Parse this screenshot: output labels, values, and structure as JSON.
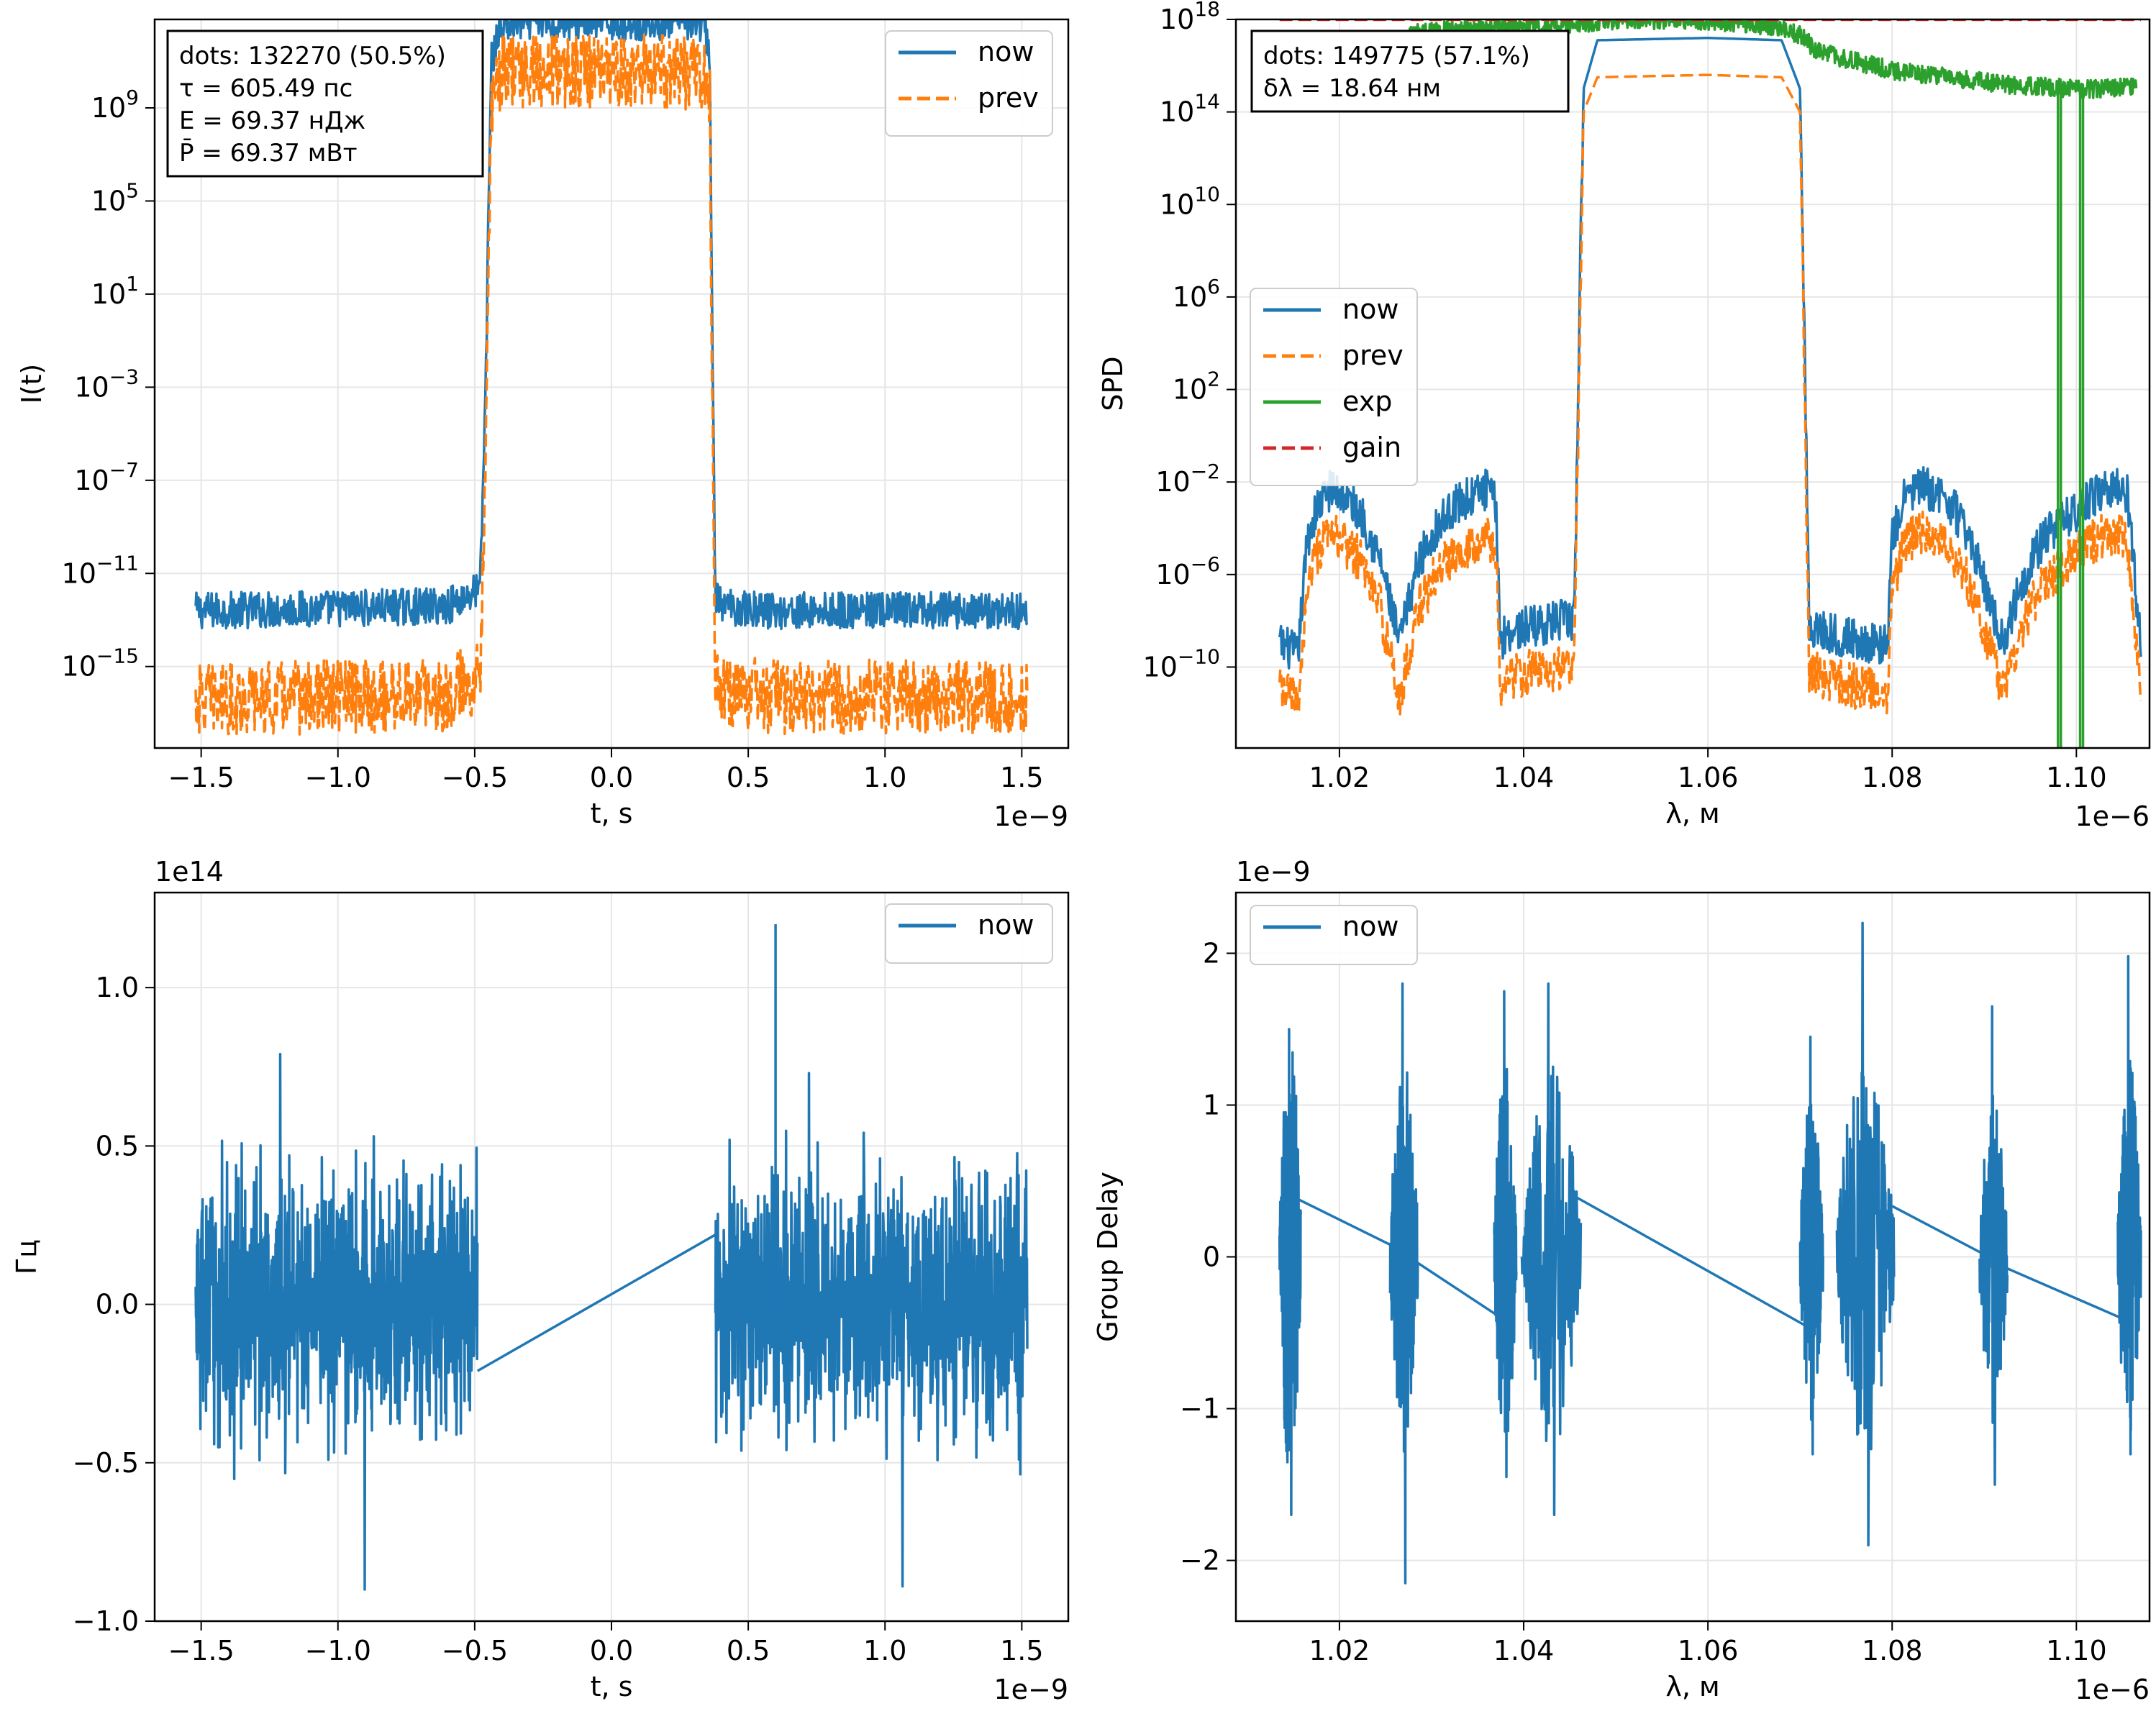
{
  "figure": {
    "colors": {
      "now": "#1f77b4",
      "prev": "#ff7f0e",
      "exp": "#2ca02c",
      "gain": "#d62728",
      "grid": "#e6e6e6"
    }
  },
  "chart_data": [
    {
      "id": "intensity",
      "type": "line",
      "xlabel": "t, s",
      "ylabel": "I(t)",
      "x_offset_text": "1e−9",
      "xlim": [
        -1.67,
        1.67
      ],
      "xticks": [
        -1.5,
        -1.0,
        -0.5,
        0.0,
        0.5,
        1.0,
        1.5
      ],
      "xtick_labels": [
        "−1.5",
        "−1.0",
        "−0.5",
        "0.0",
        "0.5",
        "1.0",
        "1.5"
      ],
      "yscale": "log",
      "ylim_exp": [
        -18.5,
        12.8
      ],
      "yticks_exp": [
        9,
        5,
        1,
        -3,
        -7,
        -11,
        -15
      ],
      "grid": true,
      "legend": {
        "position": "top-right",
        "entries": [
          {
            "series": "now",
            "label": "now"
          },
          {
            "series": "prev",
            "label": "prev"
          }
        ]
      },
      "info_box": [
        "dots: 132270 (50.5%)",
        "τ = 605.49 пс",
        "E = 69.37 нДж",
        "P̄ = 69.37 мВт"
      ],
      "series": [
        {
          "name": "now",
          "style": "solid",
          "x": [
            -1.52,
            -1.0,
            -0.6,
            -0.5,
            -0.48,
            -0.46,
            -0.44,
            -0.4,
            -0.3,
            0.0,
            0.3,
            0.34,
            0.36,
            0.37,
            0.38,
            0.4,
            0.6,
            1.0,
            1.52
          ],
          "y_exp": [
            -12.6,
            -12.5,
            -12.4,
            -11.8,
            -11.7,
            -3.0,
            11.0,
            12.6,
            12.7,
            12.7,
            12.7,
            12.6,
            11.0,
            -3.0,
            -11.8,
            -12.4,
            -12.6,
            -12.6,
            -12.6
          ],
          "noise_amp": 0.8
        },
        {
          "name": "prev",
          "style": "dashed",
          "x": [
            -1.52,
            -1.0,
            -0.6,
            -0.5,
            -0.48,
            -0.46,
            -0.44,
            -0.4,
            -0.3,
            0.0,
            0.3,
            0.34,
            0.36,
            0.37,
            0.38,
            0.4,
            0.6,
            1.0,
            1.52
          ],
          "y_exp": [
            -16.4,
            -16.3,
            -16.2,
            -15.5,
            -15.4,
            -5.0,
            9.0,
            10.5,
            10.6,
            10.6,
            10.5,
            10.4,
            9.0,
            -5.0,
            -15.5,
            -16.1,
            -16.3,
            -16.3,
            -16.3
          ],
          "noise_amp": 1.6
        }
      ]
    },
    {
      "id": "spectrum",
      "type": "line",
      "xlabel": "λ, м",
      "ylabel": "SPD",
      "x_offset_text": "1e−6",
      "xlim": [
        1.00876,
        1.10794
      ],
      "xticks": [
        1.02,
        1.04,
        1.06,
        1.08,
        1.1
      ],
      "xtick_labels": [
        "1.02",
        "1.04",
        "1.06",
        "1.08",
        "1.10"
      ],
      "yscale": "log",
      "ylim_exp": [
        -13.5,
        18.0
      ],
      "yticks_exp": [
        18,
        14,
        10,
        6,
        2,
        -2,
        -6,
        -10
      ],
      "grid": true,
      "legend": {
        "position": "center-left",
        "entries": [
          {
            "series": "now",
            "label": "now"
          },
          {
            "series": "prev",
            "label": "prev"
          },
          {
            "series": "exp",
            "label": "exp"
          },
          {
            "series": "gain",
            "label": "gain"
          }
        ]
      },
      "info_box": [
        "dots: 149775 (57.1%)",
        "δλ = 18.64 нм"
      ],
      "series": [
        {
          "name": "now",
          "style": "solid",
          "x": [
            1.0135,
            1.0145,
            1.0155,
            1.0165,
            1.0175,
            1.019,
            1.0205,
            1.0225,
            1.0245,
            1.0265,
            1.0285,
            1.0305,
            1.0325,
            1.0345,
            1.036,
            1.037,
            1.0375,
            1.038,
            1.04,
            1.044,
            1.0455,
            1.046,
            1.0465,
            1.048,
            1.06,
            1.068,
            1.07,
            1.0705,
            1.071,
            1.0715,
            1.074,
            1.078,
            1.0795,
            1.08,
            1.0815,
            1.083,
            1.0845,
            1.0865,
            1.0885,
            1.0905,
            1.092,
            1.0935,
            1.0955,
            1.0975,
            1.0995,
            1.1015,
            1.1035,
            1.1055,
            1.107
          ],
          "y_exp": [
            -9.0,
            -9.2,
            -9.5,
            -4.5,
            -3.2,
            -2.3,
            -2.6,
            -3.5,
            -5.5,
            -9.0,
            -5.5,
            -4.0,
            -3.0,
            -2.6,
            -2.3,
            -3.0,
            -9.0,
            -8.5,
            -8.3,
            -8.0,
            -8.0,
            4.0,
            15.0,
            17.1,
            17.2,
            17.1,
            15.0,
            4.0,
            -8.2,
            -8.3,
            -8.6,
            -9.0,
            -9.0,
            -4.5,
            -2.5,
            -2.2,
            -2.4,
            -3.0,
            -4.5,
            -7.0,
            -9.0,
            -7.0,
            -5.0,
            -4.0,
            -3.4,
            -2.7,
            -2.2,
            -2.4,
            -9.0
          ],
          "noise_amp": 0.9
        },
        {
          "name": "prev",
          "style": "dashed",
          "x": [
            1.0135,
            1.0145,
            1.0155,
            1.0165,
            1.0175,
            1.019,
            1.0205,
            1.0225,
            1.0245,
            1.0265,
            1.0285,
            1.0305,
            1.0325,
            1.0345,
            1.036,
            1.037,
            1.0375,
            1.038,
            1.04,
            1.044,
            1.0455,
            1.046,
            1.0465,
            1.048,
            1.06,
            1.068,
            1.07,
            1.0705,
            1.071,
            1.0715,
            1.074,
            1.078,
            1.0795,
            1.08,
            1.0815,
            1.083,
            1.0845,
            1.0865,
            1.0885,
            1.0905,
            1.092,
            1.0935,
            1.0955,
            1.0975,
            1.0995,
            1.1015,
            1.1035,
            1.1055,
            1.107
          ],
          "y_exp": [
            -11.0,
            -11.2,
            -11.5,
            -6.5,
            -5.2,
            -4.3,
            -4.6,
            -5.5,
            -7.5,
            -11.5,
            -7.5,
            -6.0,
            -5.0,
            -4.6,
            -4.3,
            -5.0,
            -11.0,
            -10.5,
            -10.3,
            -10.0,
            -10.0,
            2.0,
            14.0,
            15.5,
            15.6,
            15.5,
            14.0,
            2.0,
            -10.2,
            -10.3,
            -10.6,
            -11.0,
            -11.0,
            -6.5,
            -4.5,
            -4.2,
            -4.4,
            -5.0,
            -6.5,
            -9.0,
            -11.0,
            -9.0,
            -7.0,
            -6.0,
            -5.4,
            -4.7,
            -4.2,
            -4.4,
            -11.0
          ],
          "noise_amp": 1.0
        },
        {
          "name": "exp",
          "style": "solid",
          "x": [
            1.0275,
            1.03,
            1.035,
            1.04,
            1.045,
            1.048,
            1.052,
            1.056,
            1.06,
            1.064,
            1.068,
            1.07,
            1.072,
            1.076,
            1.08,
            1.084,
            1.088,
            1.092,
            1.096,
            1.1,
            1.104,
            1.1065
          ],
          "y_exp": [
            17.4,
            17.5,
            17.6,
            17.7,
            17.75,
            17.9,
            18.0,
            17.95,
            17.9,
            17.8,
            17.7,
            17.3,
            16.6,
            16.2,
            15.8,
            15.6,
            15.4,
            15.2,
            15.1,
            15.0,
            15.0,
            15.2
          ],
          "noise_amp": 0.4,
          "dropouts": [
            1.098,
            1.1004
          ]
        },
        {
          "name": "gain",
          "style": "dashed",
          "x": [
            1.0135,
            1.107
          ],
          "y_exp": [
            18.0,
            18.0
          ]
        }
      ]
    },
    {
      "id": "inst_freq",
      "type": "line",
      "xlabel": "t, s",
      "ylabel": "Гц",
      "x_offset_text": "1e−9",
      "y_offset_text": "1e14",
      "xlim": [
        -1.67,
        1.67
      ],
      "xticks": [
        -1.5,
        -1.0,
        -0.5,
        0.0,
        0.5,
        1.0,
        1.5
      ],
      "xtick_labels": [
        "−1.5",
        "−1.0",
        "−0.5",
        "0.0",
        "0.5",
        "1.0",
        "1.5"
      ],
      "ylim": [
        -1.0,
        1.3
      ],
      "yticks": [
        -1.0,
        -0.5,
        0.0,
        0.5,
        1.0
      ],
      "ytick_labels": [
        "−1.0",
        "−0.5",
        "0.0",
        "0.5",
        "1.0"
      ],
      "grid": true,
      "legend": {
        "position": "top-right",
        "entries": [
          {
            "series": "now",
            "label": "now"
          }
        ]
      },
      "series": [
        {
          "name": "now",
          "style": "solid",
          "noise_segments": [
            {
              "x_from": -1.52,
              "x_to": -0.49,
              "mean": 0.0,
              "amp": 0.6,
              "extremes": [
                0.79,
                -0.9
              ]
            },
            {
              "x_from": 0.38,
              "x_to": 1.52,
              "mean": 0.0,
              "amp": 0.6,
              "extremes": [
                0.73,
                -0.89
              ]
            }
          ],
          "ramp": {
            "x": [
              -0.49,
              0.38
            ],
            "y": [
              -0.21,
              0.22
            ]
          },
          "spikes": [
            {
              "x": 0.6,
              "y": 1.2
            }
          ]
        }
      ]
    },
    {
      "id": "group_delay",
      "type": "line",
      "xlabel": "λ, м",
      "ylabel": "Group Delay",
      "x_offset_text": "1e−6",
      "y_offset_text": "1e−9",
      "xlim": [
        1.00876,
        1.10794
      ],
      "xticks": [
        1.02,
        1.04,
        1.06,
        1.08,
        1.1
      ],
      "xtick_labels": [
        "1.02",
        "1.04",
        "1.06",
        "1.08",
        "1.10"
      ],
      "ylim": [
        -2.4,
        2.4
      ],
      "yticks": [
        -2,
        -1,
        0,
        1,
        2
      ],
      "ytick_labels": [
        "−2",
        "−1",
        "0",
        "1",
        "2"
      ],
      "grid": true,
      "legend": {
        "position": "top-left",
        "entries": [
          {
            "series": "now",
            "label": "now"
          }
        ]
      },
      "series": [
        {
          "name": "now",
          "style": "solid",
          "ramps": [
            {
              "x": [
                1.0155,
                1.0265
              ],
              "y": [
                0.38,
                0.05
              ]
            },
            {
              "x": [
                1.0275,
                1.0375
              ],
              "y": [
                0.0,
                -0.4
              ]
            },
            {
              "x": [
                1.0455,
                1.0705
              ],
              "y": [
                0.4,
                -0.45
              ]
            },
            {
              "x": [
                1.0795,
                1.0905
              ],
              "y": [
                0.35,
                0.0
              ]
            },
            {
              "x": [
                1.0915,
                1.1055
              ],
              "y": [
                -0.05,
                -0.42
              ]
            }
          ],
          "bursts": [
            {
              "x_from": 1.0135,
              "x_to": 1.0158,
              "amp": 1.5,
              "max": 1.5,
              "min": -1.7
            },
            {
              "x_from": 1.0255,
              "x_to": 1.0285,
              "amp": 1.3,
              "max": 1.8,
              "min": -2.15
            },
            {
              "x_from": 1.0368,
              "x_to": 1.0392,
              "amp": 1.3,
              "max": 1.75,
              "min": -1.45
            },
            {
              "x_from": 1.0398,
              "x_to": 1.0462,
              "amp": 1.3,
              "max": 1.8,
              "min": -1.7
            },
            {
              "x_from": 1.07,
              "x_to": 1.0725,
              "amp": 1.1,
              "max": 1.45,
              "min": -1.3
            },
            {
              "x_from": 1.074,
              "x_to": 1.0802,
              "amp": 1.4,
              "max": 2.2,
              "min": -1.9
            },
            {
              "x_from": 1.0895,
              "x_to": 1.0925,
              "amp": 1.1,
              "max": 1.65,
              "min": -1.5
            },
            {
              "x_from": 1.1045,
              "x_to": 1.107,
              "amp": 1.3,
              "max": 1.98,
              "min": -1.3
            }
          ]
        }
      ]
    }
  ]
}
